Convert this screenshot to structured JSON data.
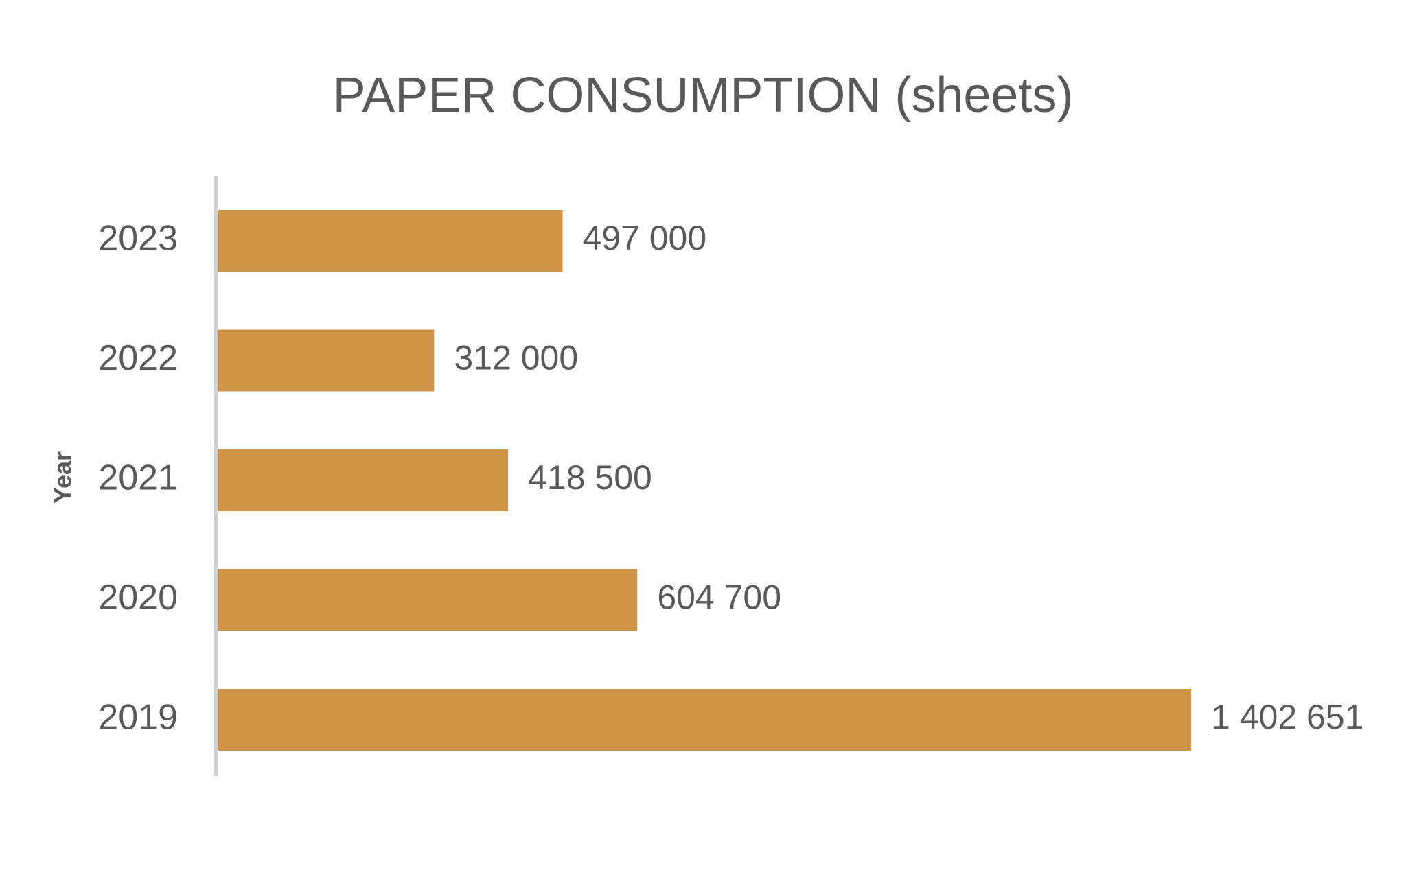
{
  "chart_data": {
    "type": "bar",
    "orientation": "horizontal",
    "title": "PAPER CONSUMPTION (sheets)",
    "y_label": "Year",
    "categories": [
      "2019",
      "2020",
      "2021",
      "2022",
      "2023"
    ],
    "values": [
      1402651,
      604700,
      418500,
      312000,
      497000
    ],
    "value_labels": [
      "1 402 651",
      "604 700",
      "418 500",
      "312 000",
      "497 000"
    ],
    "color": "#D09449"
  }
}
